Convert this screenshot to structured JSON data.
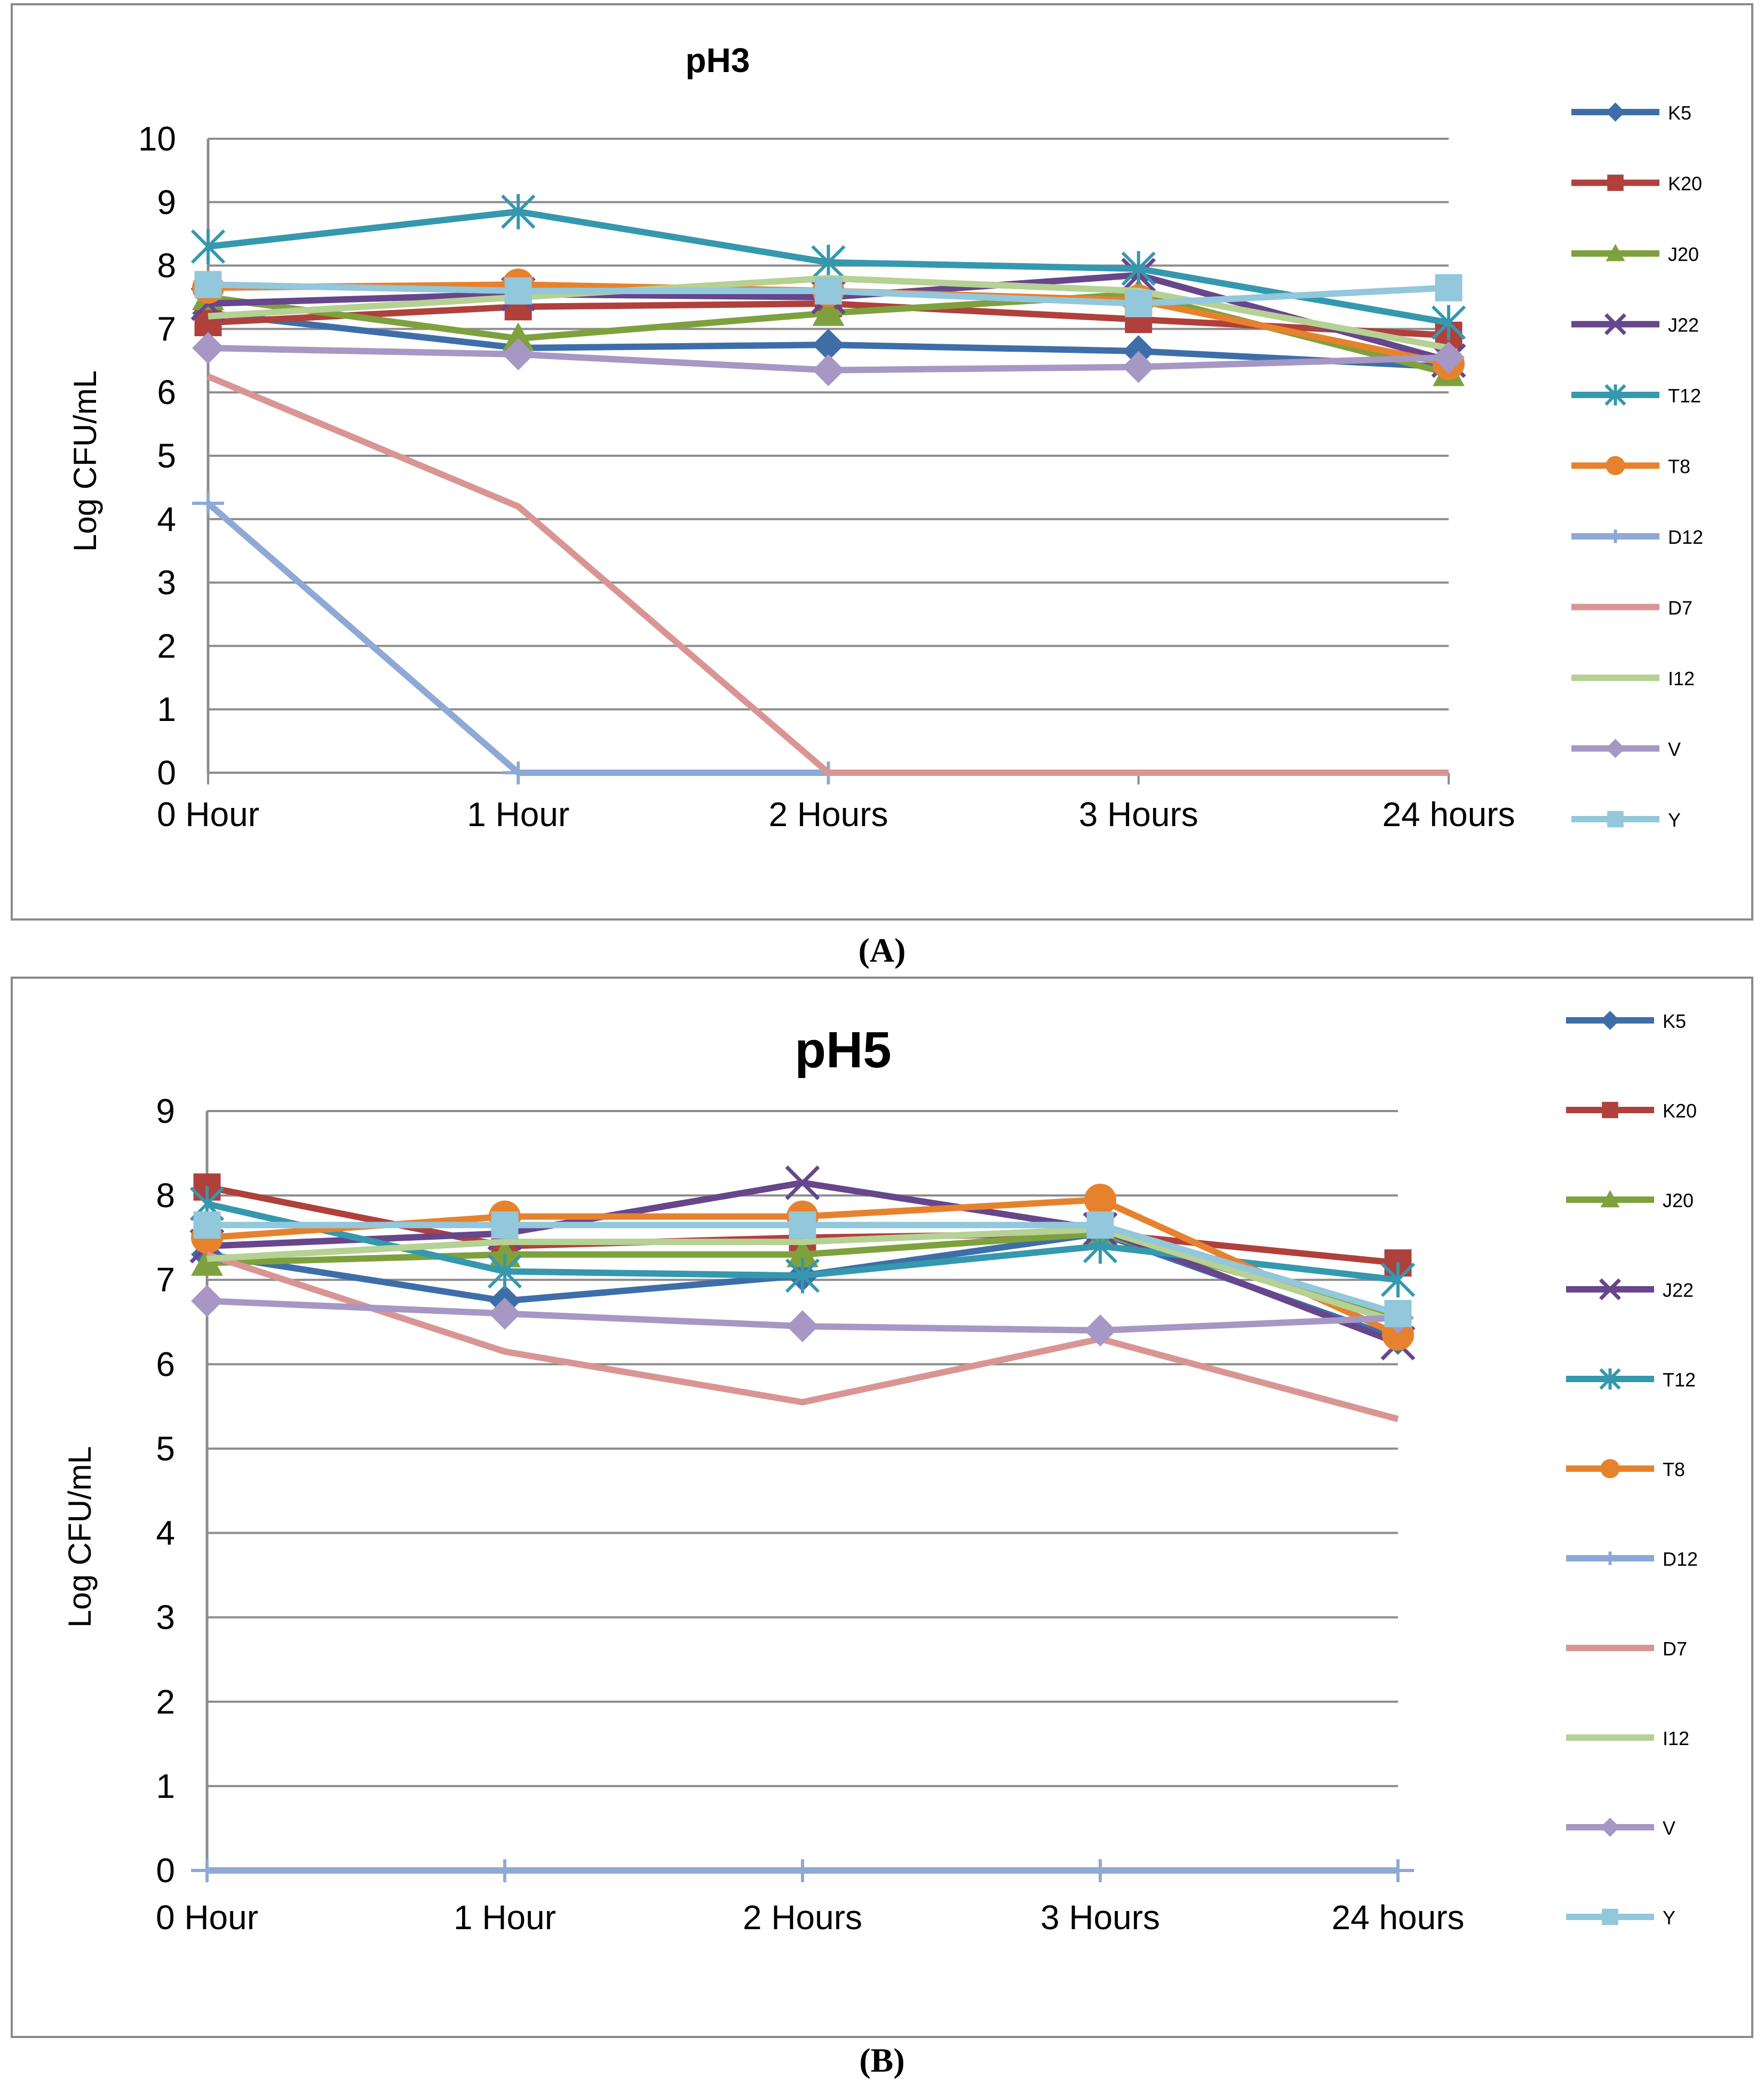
{
  "chart_data": [
    {
      "type": "line",
      "panel_label": "(A)",
      "title": "pH3",
      "xlabel": "",
      "ylabel": "Log CFU/mL",
      "ylim": [
        0,
        10
      ],
      "yticks": [
        0,
        1,
        2,
        3,
        4,
        5,
        6,
        7,
        8,
        9,
        10
      ],
      "categories": [
        "0 Hour",
        "1 Hour",
        "2 Hours",
        "3 Hours",
        "24 hours"
      ],
      "legend_position": "right",
      "series": [
        {
          "name": "K5",
          "color": "#3e6ea8",
          "marker": "diamond",
          "values": [
            7.25,
            6.7,
            6.75,
            6.65,
            6.4
          ]
        },
        {
          "name": " K20",
          "color": "#b0403c",
          "marker": "square",
          "values": [
            7.1,
            7.35,
            7.4,
            7.15,
            6.9
          ]
        },
        {
          "name": "J20",
          "color": "#7ea13e",
          "marker": "triangle",
          "values": [
            7.5,
            6.85,
            7.25,
            7.55,
            6.3
          ]
        },
        {
          "name": "J22",
          "color": "#67468c",
          "marker": "x",
          "values": [
            7.4,
            7.55,
            7.5,
            7.85,
            6.5
          ]
        },
        {
          "name": "T12",
          "color": "#3598ae",
          "marker": "asterisk",
          "values": [
            8.3,
            8.85,
            8.05,
            7.95,
            7.1
          ]
        },
        {
          "name": "T8",
          "color": "#e6822e",
          "marker": "circle",
          "values": [
            7.65,
            7.7,
            7.6,
            7.45,
            6.45
          ]
        },
        {
          "name": "D12",
          "color": "#8ea9d6",
          "marker": "plus",
          "values": [
            4.25,
            0,
            0,
            null,
            null
          ]
        },
        {
          "name": "D7",
          "color": "#d99594",
          "marker": "none",
          "values": [
            6.25,
            4.2,
            0,
            0,
            0
          ]
        },
        {
          "name": "I12",
          "color": "#b5d193",
          "marker": "none",
          "values": [
            7.2,
            7.5,
            7.8,
            7.6,
            6.7
          ]
        },
        {
          "name": "V",
          "color": "#a697c4",
          "marker": "diamond",
          "values": [
            6.7,
            6.6,
            6.35,
            6.4,
            6.55
          ]
        },
        {
          "name": "Y",
          "color": "#92c7dc",
          "marker": "square",
          "values": [
            7.7,
            7.6,
            7.6,
            7.4,
            7.65
          ]
        }
      ]
    },
    {
      "type": "line",
      "panel_label": "(B)",
      "title": "pH5",
      "xlabel": "",
      "ylabel": "Log CFU/mL",
      "ylim": [
        0,
        9
      ],
      "yticks": [
        0,
        1,
        2,
        3,
        4,
        5,
        6,
        7,
        8,
        9
      ],
      "categories": [
        "0 Hour",
        "1 Hour",
        "2 Hours",
        "3 Hours",
        "24 hours"
      ],
      "legend_position": "right",
      "series": [
        {
          "name": "K5",
          "color": "#3e6ea8",
          "marker": "diamond",
          "values": [
            7.3,
            6.75,
            7.05,
            7.55,
            6.3
          ]
        },
        {
          "name": " K20",
          "color": "#b0403c",
          "marker": "square",
          "values": [
            8.1,
            7.4,
            7.5,
            7.55,
            7.2
          ]
        },
        {
          "name": "J20",
          "color": "#7ea13e",
          "marker": "triangle",
          "values": [
            7.2,
            7.3,
            7.3,
            7.55,
            6.55
          ]
        },
        {
          "name": "J22",
          "color": "#67468c",
          "marker": "x",
          "values": [
            7.4,
            7.55,
            8.15,
            7.6,
            6.25
          ]
        },
        {
          "name": "T12",
          "color": "#3598ae",
          "marker": "asterisk",
          "values": [
            7.9,
            7.1,
            7.05,
            7.4,
            7.0
          ]
        },
        {
          "name": "T8",
          "color": "#e6822e",
          "marker": "circle",
          "values": [
            7.5,
            7.75,
            7.75,
            7.95,
            6.35
          ]
        },
        {
          "name": "D12",
          "color": "#8ea9d6",
          "marker": "plus",
          "values": [
            0,
            0,
            0,
            0,
            0
          ]
        },
        {
          "name": "D7",
          "color": "#d99594",
          "marker": "none",
          "values": [
            7.3,
            6.15,
            5.55,
            6.3,
            5.35
          ]
        },
        {
          "name": "I12",
          "color": "#b5d193",
          "marker": "none",
          "values": [
            7.25,
            7.45,
            7.45,
            7.6,
            6.5
          ]
        },
        {
          "name": "V",
          "color": "#a697c4",
          "marker": "diamond",
          "values": [
            6.75,
            6.6,
            6.45,
            6.4,
            6.55
          ]
        },
        {
          "name": "Y",
          "color": "#92c7dc",
          "marker": "square",
          "values": [
            7.65,
            7.65,
            7.65,
            7.65,
            6.6
          ]
        }
      ]
    }
  ]
}
